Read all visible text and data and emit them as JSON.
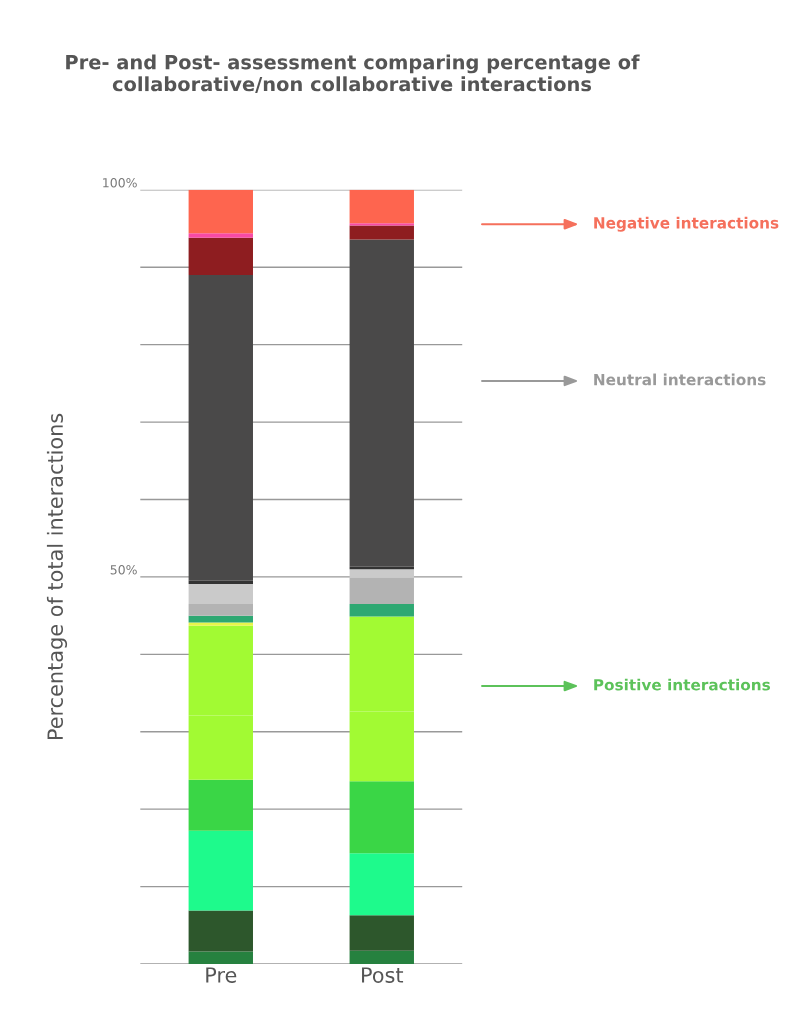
{
  "chart_data": {
    "type": "bar",
    "stacked": true,
    "title": "Pre- and Post- assessment comparing percentage of\ncollaborative/non collaborative interactions",
    "ylabel": "Percentage of total interactions",
    "categories": [
      "Pre",
      "Post"
    ],
    "series": [
      {
        "color": "#26813f",
        "values": [
          1.6,
          1.7
        ]
      },
      {
        "color": "#2d572c",
        "values": [
          5.3,
          4.6
        ]
      },
      {
        "color": "#1efa8c",
        "values": [
          10.3,
          8.0
        ]
      },
      {
        "color": "#3ad646",
        "values": [
          6.6,
          9.3
        ]
      },
      {
        "color": "#a2fa33",
        "values": [
          8.3,
          9.0
        ]
      },
      {
        "color": "#a2fa33",
        "values": [
          11.6,
          12.3
        ]
      },
      {
        "color": "#e8f54a",
        "values": [
          0.4,
          0
        ]
      },
      {
        "color": "#2ea872",
        "values": [
          0.9,
          1.6
        ]
      },
      {
        "color": "#b3b3b3",
        "values": [
          1.5,
          3.4
        ]
      },
      {
        "color": "#cacaca",
        "values": [
          2.6,
          1.1
        ]
      },
      {
        "color": "#333333",
        "values": [
          0.4,
          0.3
        ]
      },
      {
        "color": "#4a4949",
        "values": [
          39.5,
          42.3
        ]
      },
      {
        "color": "#8e1d20",
        "values": [
          4.8,
          1.8
        ]
      },
      {
        "color": "#f84aa5",
        "values": [
          0.6,
          0.3
        ]
      },
      {
        "color": "#fe654f",
        "values": [
          5.6,
          4.3
        ]
      }
    ],
    "ylim": [
      0,
      100
    ],
    "yticks": [
      {
        "value": 0,
        "label": null
      },
      {
        "value": 10,
        "label": null
      },
      {
        "value": 20,
        "label": null
      },
      {
        "value": 30,
        "label": null
      },
      {
        "value": 40,
        "label": null
      },
      {
        "value": 50,
        "label": "50%"
      },
      {
        "value": 60,
        "label": null
      },
      {
        "value": 70,
        "label": null
      },
      {
        "value": 80,
        "label": null
      },
      {
        "value": 90,
        "label": null
      },
      {
        "value": 100,
        "label": "100%"
      }
    ],
    "grid": "y",
    "annotations": [
      "Negative interactions",
      "Neutral interactions",
      "Positive interactions"
    ]
  }
}
